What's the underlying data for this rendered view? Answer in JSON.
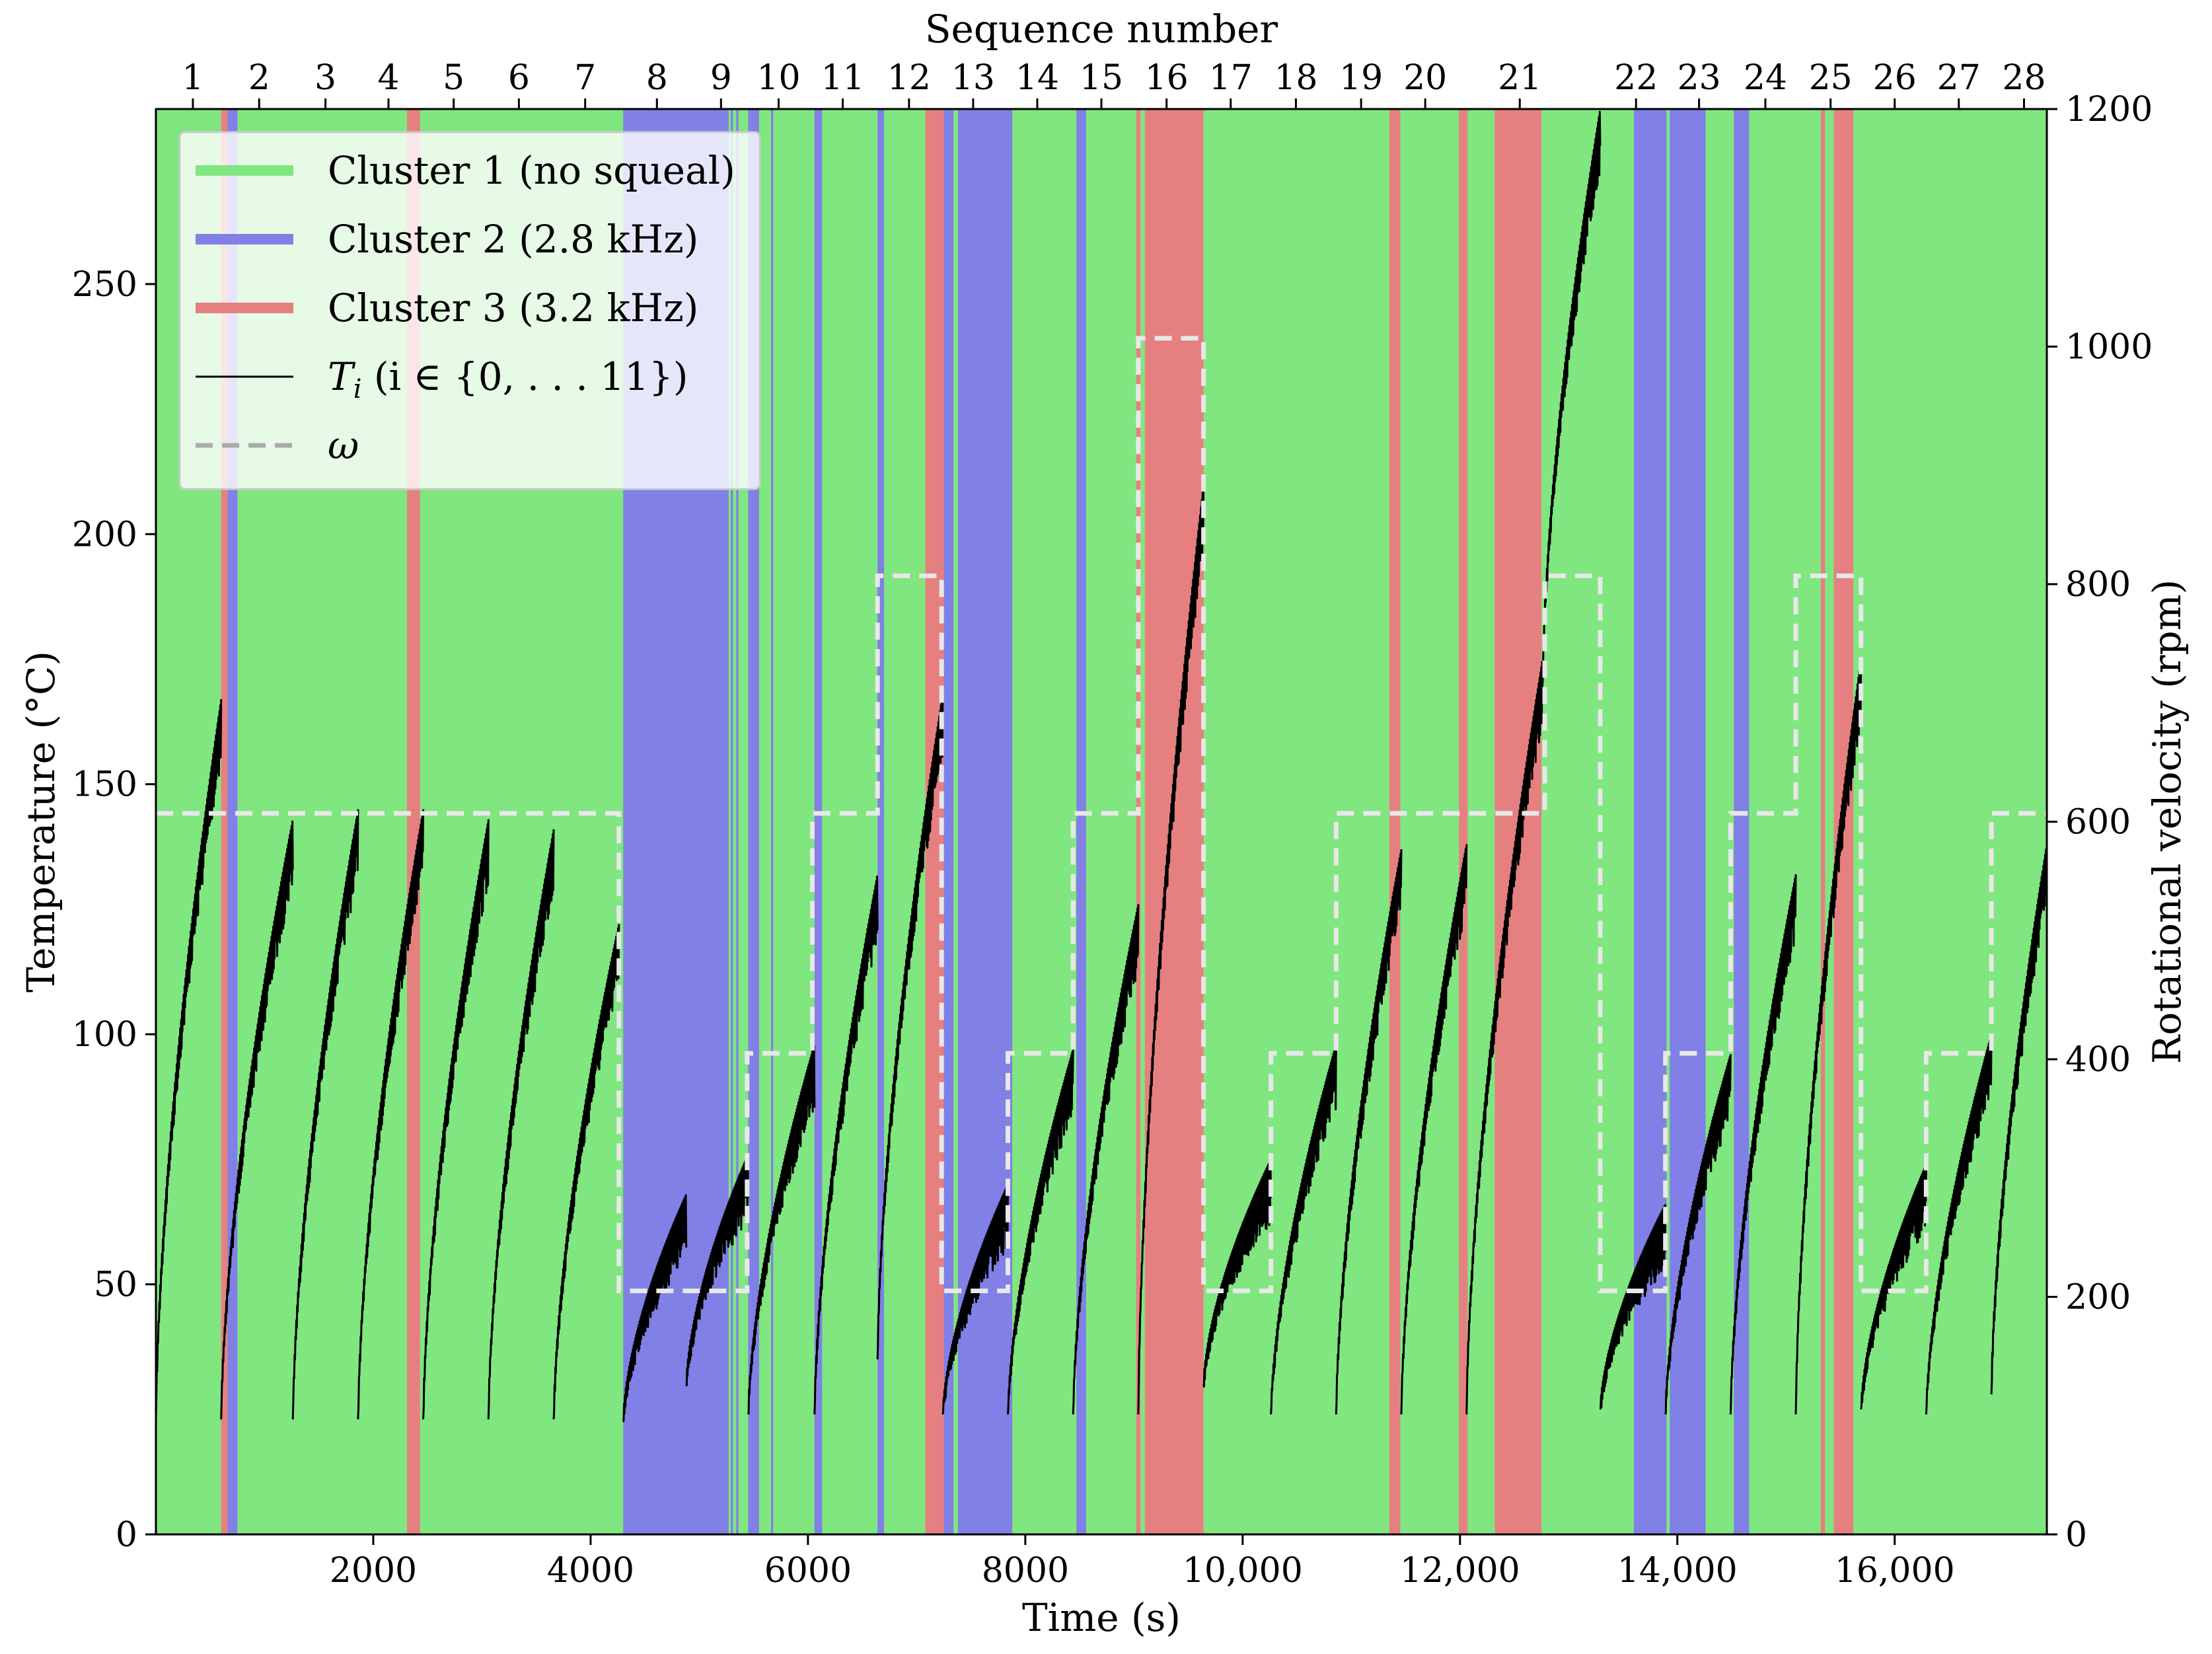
{
  "chart_data": {
    "type": "line",
    "title": "",
    "xlabel": "Time (s)",
    "ylabel": "Temperature (°C)",
    "y2label": "Rotational velocity (rpm)",
    "top_xlabel": "Sequence number",
    "xlim": [
      0,
      17400
    ],
    "ylim": [
      0,
      285
    ],
    "y2lim": [
      0,
      1200
    ],
    "x_ticks": [
      2000,
      4000,
      6000,
      8000,
      10000,
      12000,
      14000,
      16000
    ],
    "x_tick_labels": [
      "2000",
      "4000",
      "6000",
      "8000",
      "10,000",
      "12,000",
      "14,000",
      "16,000"
    ],
    "y_ticks": [
      0,
      50,
      100,
      150,
      200,
      250
    ],
    "y_tick_labels": [
      "0",
      "50",
      "100",
      "150",
      "200",
      "250"
    ],
    "y2_ticks": [
      0,
      200,
      400,
      600,
      800,
      1000,
      1200
    ],
    "y2_tick_labels": [
      "0",
      "200",
      "400",
      "600",
      "800",
      "1000",
      "1200"
    ],
    "grid": false,
    "legend_position": "top-left",
    "legend": [
      {
        "label": "Cluster 1 (no squeal)",
        "style": "band",
        "color": "#80e680"
      },
      {
        "label": "Cluster 2 (2.8 kHz)",
        "style": "band",
        "color": "#8080e6"
      },
      {
        "label": "Cluster 3 (3.2 kHz)",
        "style": "band",
        "color": "#e68080"
      },
      {
        "label": "T",
        "sub": "i",
        "rest": " (i ∈ {0, . . . 11})",
        "style": "line",
        "color": "#000000"
      },
      {
        "label": "ω",
        "style": "dashed",
        "color": "#aaaaaa"
      }
    ],
    "background_color": "#80e680",
    "cluster_colors": {
      "1": "#80e680",
      "2": "#8080e6",
      "3": "#e68080"
    },
    "cluster_bands": [
      {
        "cluster": 3,
        "x0": 600,
        "x1": 660
      },
      {
        "cluster": 2,
        "x0": 660,
        "x1": 750
      },
      {
        "cluster": 3,
        "x0": 2310,
        "x1": 2430
      },
      {
        "cluster": 2,
        "x0": 4300,
        "x1": 5270
      },
      {
        "cluster": 2,
        "x0": 5290,
        "x1": 5310
      },
      {
        "cluster": 2,
        "x0": 5340,
        "x1": 5360
      },
      {
        "cluster": 2,
        "x0": 5450,
        "x1": 5550
      },
      {
        "cluster": 2,
        "x0": 5660,
        "x1": 5680
      },
      {
        "cluster": 2,
        "x0": 6060,
        "x1": 6130
      },
      {
        "cluster": 2,
        "x0": 6640,
        "x1": 6700
      },
      {
        "cluster": 3,
        "x0": 7080,
        "x1": 7250
      },
      {
        "cluster": 2,
        "x0": 7250,
        "x1": 7340
      },
      {
        "cluster": 2,
        "x0": 7380,
        "x1": 7880
      },
      {
        "cluster": 2,
        "x0": 8470,
        "x1": 8560
      },
      {
        "cluster": 3,
        "x0": 9020,
        "x1": 9060
      },
      {
        "cluster": 3,
        "x0": 9100,
        "x1": 9640
      },
      {
        "cluster": 3,
        "x0": 11350,
        "x1": 11450
      },
      {
        "cluster": 3,
        "x0": 11990,
        "x1": 12070
      },
      {
        "cluster": 3,
        "x0": 12320,
        "x1": 12750
      },
      {
        "cluster": 2,
        "x0": 13600,
        "x1": 13900
      },
      {
        "cluster": 2,
        "x0": 13930,
        "x1": 14260
      },
      {
        "cluster": 2,
        "x0": 14520,
        "x1": 14660
      },
      {
        "cluster": 3,
        "x0": 15320,
        "x1": 15360
      },
      {
        "cluster": 3,
        "x0": 15440,
        "x1": 15620
      }
    ],
    "sequence_numbers": [
      "1",
      "2",
      "3",
      "4",
      "5",
      "6",
      "7",
      "8",
      "9",
      "10",
      "11",
      "12",
      "13",
      "14",
      "15",
      "16",
      "17",
      "18",
      "19",
      "20",
      "21",
      "22",
      "23",
      "24",
      "25",
      "26",
      "27",
      "28"
    ],
    "sequence_positions": [
      340,
      950,
      1560,
      2140,
      2740,
      3340,
      3950,
      4610,
      5200,
      5730,
      6320,
      6930,
      7520,
      8110,
      8700,
      9300,
      9890,
      10490,
      11090,
      11680,
      12550,
      13620,
      14200,
      14810,
      15410,
      16000,
      16590,
      17190
    ],
    "series": [
      {
        "name": "ω",
        "style": "dashed",
        "color": "#e8e8e8",
        "x": [
          0,
          4260,
          4260,
          5440,
          5440,
          6040,
          6040,
          6640,
          6640,
          7230,
          7230,
          7840,
          7840,
          8440,
          8440,
          9040,
          9040,
          9640,
          9640,
          10260,
          10260,
          10860,
          10860,
          12780,
          12780,
          13290,
          13290,
          13890,
          13890,
          14490,
          14490,
          15090,
          15090,
          15690,
          15690,
          16290,
          16290,
          16890,
          16890,
          17400
        ],
        "values": [
          607,
          607,
          205,
          205,
          405,
          405,
          607,
          607,
          807,
          807,
          205,
          205,
          405,
          405,
          607,
          607,
          1007,
          1007,
          205,
          205,
          405,
          405,
          607,
          607,
          807,
          807,
          205,
          205,
          405,
          405,
          607,
          607,
          807,
          807,
          205,
          205,
          405,
          405,
          607,
          607
        ]
      },
      {
        "name": "T",
        "style": "sawtooth",
        "color": "#000000",
        "segments": [
          {
            "x0": 0,
            "x1": 600,
            "y0": 23,
            "y1": 167
          },
          {
            "x0": 600,
            "x1": 1260,
            "y0": 23,
            "y1": 143
          },
          {
            "x0": 1260,
            "x1": 1860,
            "y0": 23,
            "y1": 145
          },
          {
            "x0": 1860,
            "x1": 2460,
            "y0": 23,
            "y1": 145
          },
          {
            "x0": 2460,
            "x1": 3060,
            "y0": 23,
            "y1": 143
          },
          {
            "x0": 3060,
            "x1": 3660,
            "y0": 23,
            "y1": 141
          },
          {
            "x0": 3660,
            "x1": 4260,
            "y0": 23,
            "y1": 122
          },
          {
            "x0": 4300,
            "x1": 4880,
            "y0": 23,
            "y1": 68
          },
          {
            "x0": 4880,
            "x1": 5450,
            "y0": 30,
            "y1": 76
          },
          {
            "x0": 5450,
            "x1": 6060,
            "y0": 24,
            "y1": 98
          },
          {
            "x0": 6060,
            "x1": 6640,
            "y0": 24,
            "y1": 132
          },
          {
            "x0": 6640,
            "x1": 7240,
            "y0": 35,
            "y1": 168
          },
          {
            "x0": 7240,
            "x1": 7840,
            "y0": 24,
            "y1": 70
          },
          {
            "x0": 7840,
            "x1": 8440,
            "y0": 24,
            "y1": 97
          },
          {
            "x0": 8440,
            "x1": 9040,
            "y0": 24,
            "y1": 126
          },
          {
            "x0": 9040,
            "x1": 9640,
            "y0": 24,
            "y1": 210
          },
          {
            "x0": 9640,
            "x1": 10260,
            "y0": 30,
            "y1": 75
          },
          {
            "x0": 10260,
            "x1": 10860,
            "y0": 24,
            "y1": 98
          },
          {
            "x0": 10860,
            "x1": 11460,
            "y0": 24,
            "y1": 137
          },
          {
            "x0": 11460,
            "x1": 12060,
            "y0": 24,
            "y1": 138
          },
          {
            "x0": 12060,
            "x1": 12760,
            "y0": 24,
            "y1": 175
          },
          {
            "x0": 12760,
            "x1": 13290,
            "y0": 170,
            "y1": 285
          },
          {
            "x0": 13290,
            "x1": 13890,
            "y0": 25,
            "y1": 66
          },
          {
            "x0": 13890,
            "x1": 14490,
            "y0": 24,
            "y1": 96
          },
          {
            "x0": 14490,
            "x1": 15090,
            "y0": 24,
            "y1": 132
          },
          {
            "x0": 15090,
            "x1": 15690,
            "y0": 24,
            "y1": 175
          },
          {
            "x0": 15690,
            "x1": 16290,
            "y0": 25,
            "y1": 74
          },
          {
            "x0": 16290,
            "x1": 16890,
            "y0": 24,
            "y1": 100
          },
          {
            "x0": 16890,
            "x1": 17400,
            "y0": 28,
            "y1": 138
          }
        ]
      }
    ]
  }
}
